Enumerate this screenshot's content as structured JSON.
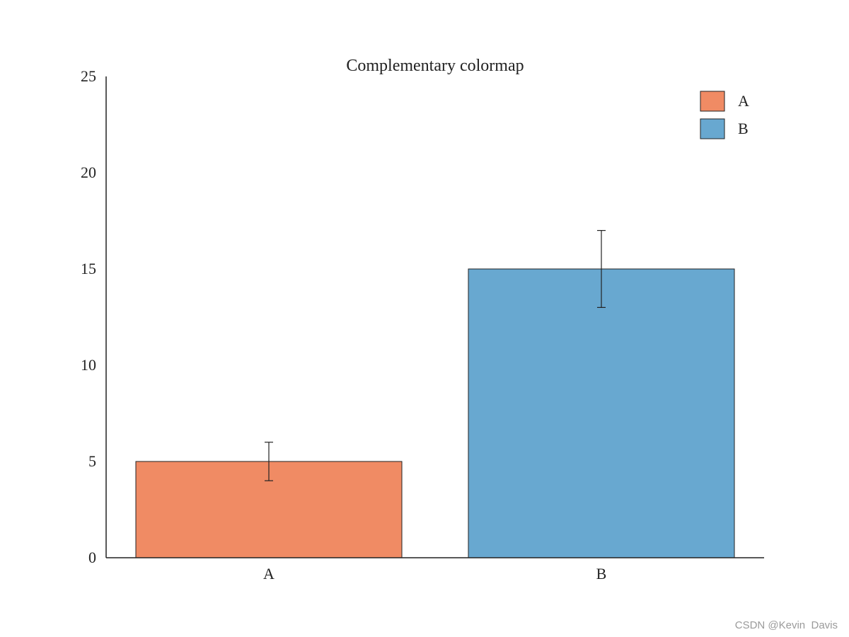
{
  "chart_data": {
    "type": "bar",
    "title": "Complementary colormap",
    "xlabel": "",
    "ylabel": "",
    "categories": [
      "A",
      "B"
    ],
    "values": [
      5,
      15
    ],
    "errors": [
      1,
      2
    ],
    "colors": [
      "#f08b64",
      "#68a8d0"
    ],
    "ylim": [
      0,
      25
    ],
    "yticks": [
      0,
      5,
      10,
      15,
      20,
      25
    ],
    "grid": false,
    "legend": {
      "placement": "top-right",
      "entries": [
        {
          "label": "A",
          "color": "#f08b64"
        },
        {
          "label": "B",
          "color": "#68a8d0"
        }
      ]
    }
  },
  "watermark": "CSDN @Kevin  Davis"
}
